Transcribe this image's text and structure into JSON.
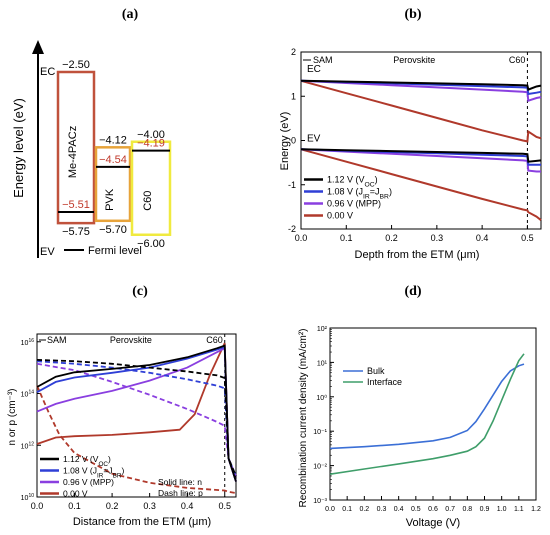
{
  "chart_data": [
    {
      "panel_label": "(a)",
      "type": "diagram",
      "y_axis_label": "Energy level (eV)",
      "ec_label": "EC",
      "ev_label": "EV",
      "legend": {
        "label": "Fermi level",
        "color": "#000000"
      },
      "layers": [
        {
          "name": "Me-4PACz",
          "top": -2.5,
          "bottom": -5.75,
          "fermi": -5.51,
          "color": "#c0523c",
          "top_text": "−2.50",
          "bottom_text": "−5.75",
          "fermi_text": "−5.51"
        },
        {
          "name": "PVK",
          "top": -4.12,
          "bottom": -5.7,
          "fermi": -4.54,
          "color": "#e7a33a",
          "top_text": "−4.12",
          "bottom_text": "−5.70",
          "fermi_text": "−4.54"
        },
        {
          "name": "C60",
          "top": -4.0,
          "bottom": -6.0,
          "fermi": -4.19,
          "color": "#f0ea3f",
          "top_text": "−4.00",
          "bottom_text": "−6.00",
          "fermi_text": "−4.19"
        }
      ]
    },
    {
      "panel_label": "(b)",
      "type": "line",
      "xlabel": "Depth from the ETM (μm)",
      "ylabel": "Energy (eV)",
      "xlim": [
        0,
        0.53
      ],
      "ylim": [
        -2,
        2
      ],
      "xticks": [
        0.0,
        0.1,
        0.2,
        0.3,
        0.4,
        0.5
      ],
      "xtick_labels": [
        "0.0",
        "0.1",
        "0.2",
        "0.3",
        "0.4",
        "0.5"
      ],
      "yticks": [
        -2,
        -1,
        0,
        1,
        2
      ],
      "ytick_labels": [
        "-2",
        "-1",
        "0",
        "1",
        "2"
      ],
      "region_labels": [
        "SAM",
        "Perovskite",
        "C60"
      ],
      "band_labels": [
        "EC",
        "EV"
      ],
      "boundary_x": 0.5,
      "series": [
        {
          "name": "1.12 V (VOC)",
          "legend_main": "1.12 V (V",
          "legend_sub": "OC",
          "legend_tail": ")",
          "color": "#000000",
          "ec": [
            [
              0,
              1.35
            ],
            [
              0.1,
              1.33
            ],
            [
              0.2,
              1.31
            ],
            [
              0.3,
              1.29
            ],
            [
              0.4,
              1.27
            ],
            [
              0.49,
              1.25
            ],
            [
              0.5,
              1.24
            ],
            [
              0.502,
              1.15
            ],
            [
              0.52,
              1.22
            ],
            [
              0.53,
              1.24
            ]
          ],
          "ev": [
            [
              0,
              -0.2
            ],
            [
              0.1,
              -0.22
            ],
            [
              0.2,
              -0.24
            ],
            [
              0.3,
              -0.26
            ],
            [
              0.4,
              -0.28
            ],
            [
              0.49,
              -0.3
            ],
            [
              0.5,
              -0.31
            ],
            [
              0.502,
              -0.48
            ],
            [
              0.52,
              -0.46
            ],
            [
              0.53,
              -0.45
            ]
          ]
        },
        {
          "name": "1.08 V (JIR=JBR)",
          "legend_main": "1.08 V (J",
          "legend_sub": "IR",
          "legend_mid": "=J",
          "legend_sub2": "BR",
          "legend_tail": ")",
          "color": "#2f3fd6",
          "ec": [
            [
              0,
              1.35
            ],
            [
              0.1,
              1.32
            ],
            [
              0.2,
              1.29
            ],
            [
              0.3,
              1.26
            ],
            [
              0.4,
              1.23
            ],
            [
              0.49,
              1.2
            ],
            [
              0.5,
              1.19
            ],
            [
              0.502,
              1.05
            ],
            [
              0.52,
              1.08
            ],
            [
              0.53,
              1.1
            ]
          ],
          "ev": [
            [
              0,
              -0.2
            ],
            [
              0.1,
              -0.23
            ],
            [
              0.2,
              -0.26
            ],
            [
              0.3,
              -0.29
            ],
            [
              0.4,
              -0.32
            ],
            [
              0.49,
              -0.35
            ],
            [
              0.5,
              -0.36
            ],
            [
              0.502,
              -0.55
            ],
            [
              0.52,
              -0.55
            ],
            [
              0.53,
              -0.55
            ]
          ]
        },
        {
          "name": "0.96 V (MPP)",
          "legend_main": "0.96 V (MPP)",
          "color": "#8a3fe0",
          "ec": [
            [
              0,
              1.35
            ],
            [
              0.1,
              1.3
            ],
            [
              0.2,
              1.25
            ],
            [
              0.3,
              1.2
            ],
            [
              0.4,
              1.15
            ],
            [
              0.49,
              1.1
            ],
            [
              0.5,
              1.09
            ],
            [
              0.502,
              0.9
            ],
            [
              0.52,
              0.96
            ],
            [
              0.53,
              0.98
            ]
          ],
          "ev": [
            [
              0,
              -0.2
            ],
            [
              0.1,
              -0.25
            ],
            [
              0.2,
              -0.3
            ],
            [
              0.3,
              -0.35
            ],
            [
              0.4,
              -0.4
            ],
            [
              0.49,
              -0.45
            ],
            [
              0.5,
              -0.46
            ],
            [
              0.502,
              -0.68
            ],
            [
              0.52,
              -0.7
            ],
            [
              0.53,
              -0.7
            ]
          ]
        },
        {
          "name": "0.00 V",
          "legend_main": "0.00 V",
          "color": "#b0392b",
          "ec": [
            [
              0,
              1.35
            ],
            [
              0.1,
              1.07
            ],
            [
              0.2,
              0.79
            ],
            [
              0.3,
              0.51
            ],
            [
              0.4,
              0.23
            ],
            [
              0.49,
              0.0
            ],
            [
              0.5,
              -0.02
            ],
            [
              0.502,
              0.2
            ],
            [
              0.52,
              0.08
            ],
            [
              0.53,
              0.05
            ]
          ],
          "ev": [
            [
              0,
              -0.2
            ],
            [
              0.1,
              -0.48
            ],
            [
              0.2,
              -0.76
            ],
            [
              0.3,
              -1.04
            ],
            [
              0.4,
              -1.32
            ],
            [
              0.49,
              -1.56
            ],
            [
              0.5,
              -1.58
            ],
            [
              0.502,
              -1.62
            ],
            [
              0.52,
              -1.72
            ],
            [
              0.53,
              -1.8
            ]
          ]
        }
      ]
    },
    {
      "panel_label": "(c)",
      "type": "line",
      "xlabel": "Distance from the ETM (μm)",
      "ylabel": "n or p (cm⁻³)",
      "xlim": [
        0,
        0.53
      ],
      "ylim_log10": [
        10,
        16.3
      ],
      "xticks": [
        0.0,
        0.1,
        0.2,
        0.3,
        0.4,
        0.5
      ],
      "xtick_labels": [
        "0.0",
        "0.1",
        "0.2",
        "0.3",
        "0.4",
        "0.5"
      ],
      "yticks_log10": [
        10,
        12,
        14,
        16
      ],
      "region_labels": [
        "SAM",
        "Perovskite",
        "C60"
      ],
      "note_solid": "Solid line: n",
      "note_dash": "Dash line: p",
      "series": [
        {
          "name": "1.12 V (VOC)",
          "legend_main": "1.12 V (V",
          "legend_sub": "OC",
          "legend_tail": ")",
          "color": "#000000",
          "n": [
            [
              0,
              14.25
            ],
            [
              0.05,
              14.65
            ],
            [
              0.1,
              14.82
            ],
            [
              0.2,
              14.95
            ],
            [
              0.3,
              15.1
            ],
            [
              0.4,
              15.4
            ],
            [
              0.48,
              15.75
            ],
            [
              0.5,
              15.85
            ],
            [
              0.51,
              11.5
            ],
            [
              0.53,
              10.6
            ]
          ],
          "p": [
            [
              0,
              15.3
            ],
            [
              0.1,
              15.25
            ],
            [
              0.2,
              15.15
            ],
            [
              0.3,
              15.0
            ],
            [
              0.4,
              14.85
            ],
            [
              0.48,
              14.7
            ],
            [
              0.5,
              14.6
            ],
            [
              0.51,
              11.5
            ],
            [
              0.53,
              10.8
            ]
          ]
        },
        {
          "name": "1.08 V (JIR=JBR)",
          "legend_main": "1.08 V (J",
          "legend_sub": "IR",
          "legend_mid": "=J",
          "legend_sub2": "BR",
          "legend_tail": ")",
          "color": "#2f3fd6",
          "n": [
            [
              0,
              14.05
            ],
            [
              0.05,
              14.45
            ],
            [
              0.1,
              14.62
            ],
            [
              0.2,
              14.8
            ],
            [
              0.3,
              15.0
            ],
            [
              0.4,
              15.35
            ],
            [
              0.48,
              15.7
            ],
            [
              0.5,
              15.8
            ],
            [
              0.51,
              11.5
            ],
            [
              0.53,
              10.6
            ]
          ],
          "p": [
            [
              0,
              15.25
            ],
            [
              0.1,
              15.15
            ],
            [
              0.2,
              15.0
            ],
            [
              0.3,
              14.8
            ],
            [
              0.4,
              14.55
            ],
            [
              0.48,
              14.3
            ],
            [
              0.5,
              14.2
            ],
            [
              0.51,
              11.5
            ],
            [
              0.53,
              10.8
            ]
          ]
        },
        {
          "name": "0.96 V (MPP)",
          "legend_main": "0.96 V (MPP)",
          "color": "#8a3fe0",
          "n": [
            [
              0,
              13.3
            ],
            [
              0.05,
              13.6
            ],
            [
              0.1,
              13.8
            ],
            [
              0.2,
              14.1
            ],
            [
              0.3,
              14.5
            ],
            [
              0.4,
              15.0
            ],
            [
              0.48,
              15.6
            ],
            [
              0.5,
              15.75
            ],
            [
              0.51,
              11.5
            ],
            [
              0.53,
              10.6
            ]
          ],
          "p": [
            [
              0,
              15.15
            ],
            [
              0.1,
              14.9
            ],
            [
              0.2,
              14.45
            ],
            [
              0.3,
              13.95
            ],
            [
              0.4,
              13.4
            ],
            [
              0.48,
              12.9
            ],
            [
              0.5,
              12.75
            ],
            [
              0.51,
              11.5
            ],
            [
              0.53,
              10.8
            ]
          ]
        },
        {
          "name": "0.00 V",
          "legend_main": "0.00 V",
          "color": "#b0392b",
          "n": [
            [
              0,
              12.05
            ],
            [
              0.05,
              12.3
            ],
            [
              0.1,
              12.35
            ],
            [
              0.2,
              12.4
            ],
            [
              0.3,
              12.5
            ],
            [
              0.38,
              12.6
            ],
            [
              0.42,
              13.2
            ],
            [
              0.46,
              14.7
            ],
            [
              0.5,
              15.95
            ],
            [
              0.51,
              11.5
            ],
            [
              0.53,
              10.6
            ]
          ],
          "p": [
            [
              0,
              14.3
            ],
            [
              0.03,
              13.3
            ],
            [
              0.06,
              12.4
            ],
            [
              0.1,
              11.7
            ],
            [
              0.2,
              10.9
            ],
            [
              0.3,
              10.55
            ],
            [
              0.4,
              10.35
            ],
            [
              0.5,
              10.25
            ],
            [
              0.51,
              10.2
            ],
            [
              0.53,
              10.15
            ]
          ]
        }
      ]
    },
    {
      "panel_label": "(d)",
      "type": "line",
      "xlabel": "Voltage (V)",
      "ylabel": "Recombination current density (mA/cm²)",
      "xlim": [
        0,
        1.2
      ],
      "ylim_log10": [
        -3,
        2
      ],
      "xticks": [
        0,
        0.1,
        0.2,
        0.3,
        0.4,
        0.5,
        0.6,
        0.7,
        0.8,
        0.9,
        1.0,
        1.1,
        1.2
      ],
      "xtick_labels": [
        "0.0",
        "0.1",
        "0.2",
        "0.3",
        "0.4",
        "0.5",
        "0.6",
        "0.7",
        "0.8",
        "0.9",
        "1.0",
        "1.1",
        "1.2"
      ],
      "ytick_labels": [
        "10⁻³",
        "10⁻²",
        "10⁻¹",
        "10⁰",
        "10¹",
        "10²"
      ],
      "series": [
        {
          "name": "Bulk",
          "color": "#3b6fd6",
          "points": [
            [
              0,
              -1.5
            ],
            [
              0.2,
              -1.45
            ],
            [
              0.4,
              -1.38
            ],
            [
              0.6,
              -1.28
            ],
            [
              0.7,
              -1.18
            ],
            [
              0.8,
              -0.98
            ],
            [
              0.85,
              -0.72
            ],
            [
              0.9,
              -0.35
            ],
            [
              0.95,
              0.05
            ],
            [
              1.0,
              0.45
            ],
            [
              1.05,
              0.75
            ],
            [
              1.1,
              0.9
            ],
            [
              1.13,
              0.95
            ]
          ]
        },
        {
          "name": "Interface",
          "color": "#3f9e6a",
          "points": [
            [
              0,
              -2.25
            ],
            [
              0.2,
              -2.1
            ],
            [
              0.4,
              -1.95
            ],
            [
              0.6,
              -1.8
            ],
            [
              0.7,
              -1.7
            ],
            [
              0.8,
              -1.58
            ],
            [
              0.85,
              -1.45
            ],
            [
              0.9,
              -1.2
            ],
            [
              0.95,
              -0.7
            ],
            [
              1.0,
              -0.1
            ],
            [
              1.05,
              0.5
            ],
            [
              1.1,
              1.05
            ],
            [
              1.13,
              1.25
            ]
          ]
        }
      ]
    }
  ]
}
